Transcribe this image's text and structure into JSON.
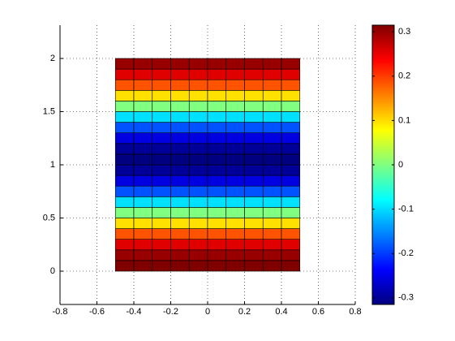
{
  "chart_data": {
    "type": "heatmap",
    "x_edges": [
      -0.5,
      -0.4,
      -0.3,
      -0.2,
      -0.1,
      0,
      0.1,
      0.2,
      0.3,
      0.4,
      0.5
    ],
    "y_edges": [
      0,
      0.1,
      0.2,
      0.3,
      0.4,
      0.5,
      0.6,
      0.7,
      0.8,
      0.9,
      1,
      1.1,
      1.2,
      1.3,
      1.4,
      1.5,
      1.6,
      1.7,
      1.8,
      1.9,
      2
    ],
    "values": [
      0.315,
      0.3,
      0.255,
      0.185,
      0.097,
      0,
      -0.097,
      -0.185,
      -0.255,
      -0.3,
      -0.315,
      -0.3,
      -0.255,
      -0.185,
      -0.097,
      0,
      0.097,
      0.185,
      0.255,
      0.3
    ],
    "colormap": "jet",
    "clim": [
      -0.315,
      0.315
    ],
    "xlim": [
      -0.8,
      0.8
    ],
    "xticks": [
      -0.8,
      -0.6,
      -0.4,
      -0.2,
      0,
      0.2,
      0.4,
      0.6,
      0.8
    ],
    "ylim": [
      -0.313,
      2.313
    ],
    "yticks": [
      0,
      0.5,
      1,
      1.5,
      2
    ],
    "cticks": [
      -0.3,
      -0.2,
      -0.1,
      0,
      0.1,
      0.2,
      0.3
    ],
    "grid": true
  }
}
